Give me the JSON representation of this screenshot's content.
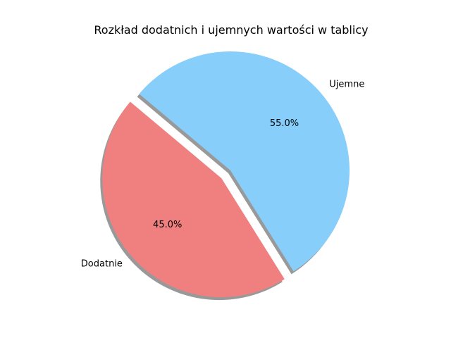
{
  "chart_data": {
    "type": "pie",
    "title": "Rozkład dodatnich i ujemnych wartości w tablicy",
    "slices": [
      {
        "label": "Dodatnie",
        "value": 45.0,
        "pct_label": "45.0%",
        "color": "#f08080",
        "explode": 0.1
      },
      {
        "label": "Ujemne",
        "value": 55.0,
        "pct_label": "55.0%",
        "color": "#87cefa",
        "explode": 0.0
      }
    ],
    "start_angle": 140,
    "shadow": true,
    "legend": "none"
  }
}
